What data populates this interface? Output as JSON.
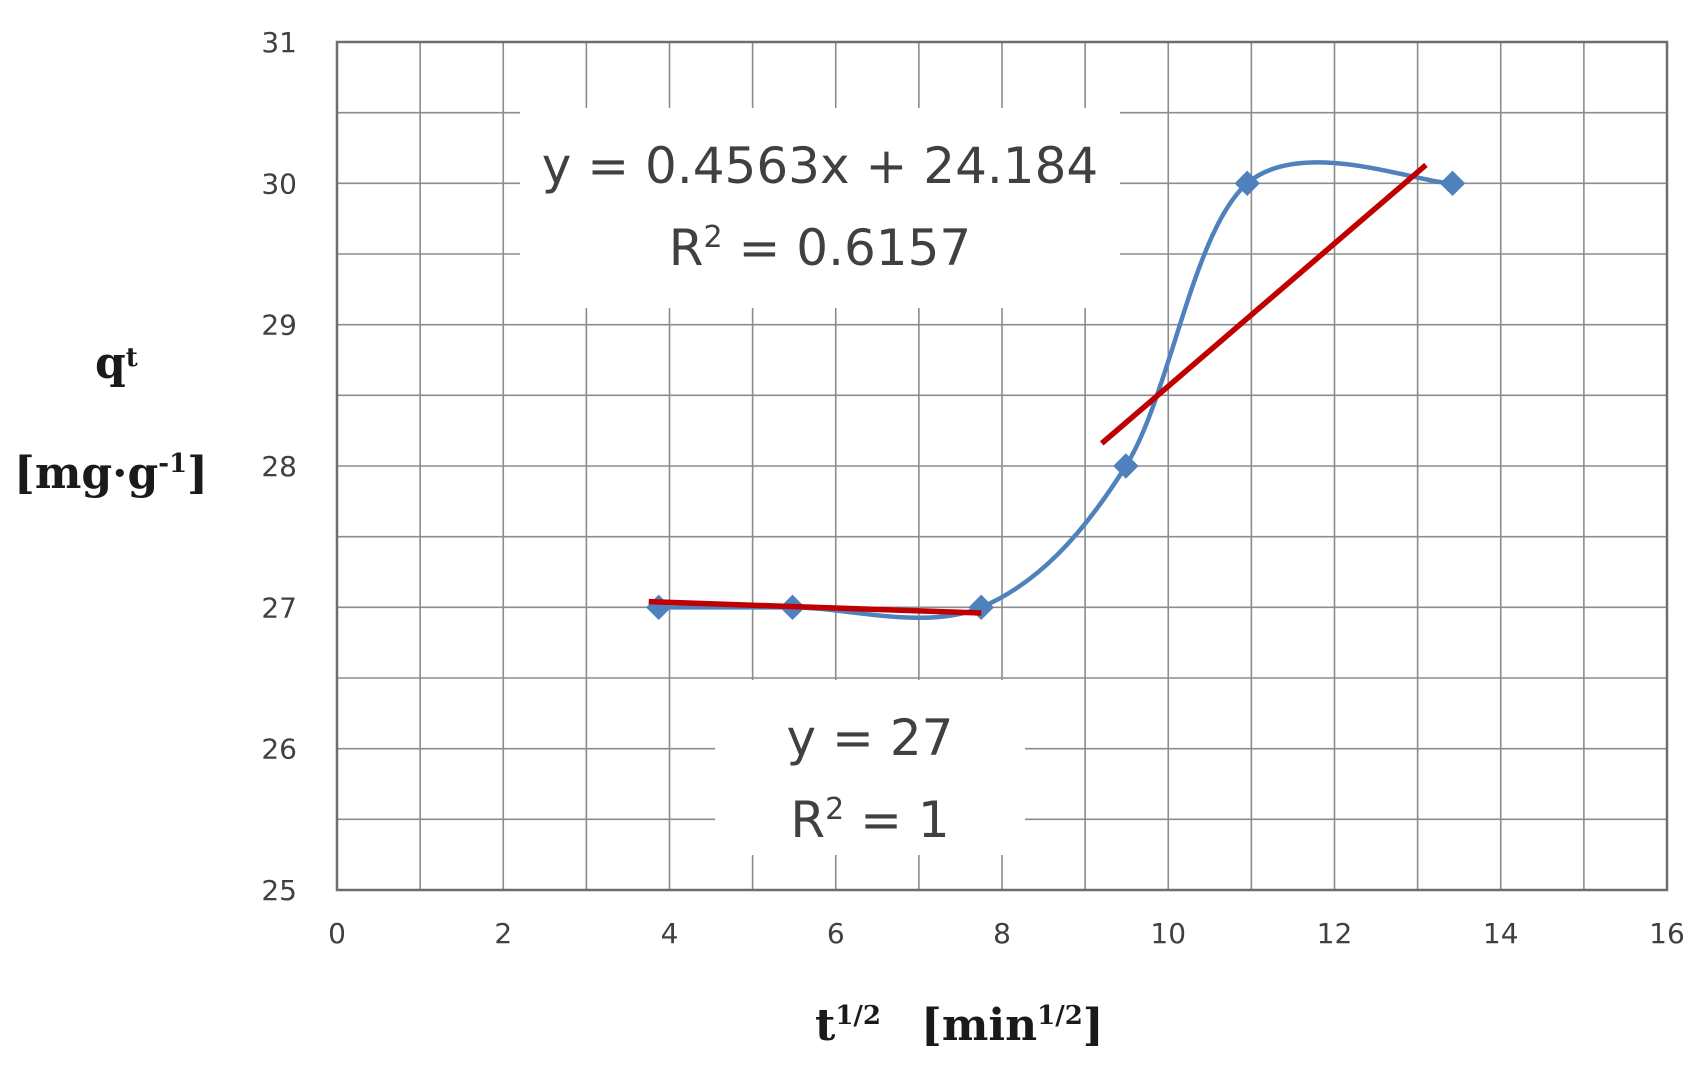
{
  "chart_data": {
    "type": "scatter",
    "xlabel": {
      "base": "t",
      "base_sup": "1/2",
      "unit_open": "[min",
      "unit_sup": "1/2",
      "unit_close": "]"
    },
    "ylabel": {
      "line1_base": "q",
      "line1_sub": "t",
      "line2_open": "[mg·g",
      "line2_sup": "-1",
      "line2_close": "]"
    },
    "xlim": [
      0,
      16
    ],
    "ylim": [
      25,
      31
    ],
    "x_ticks": [
      "0",
      "2",
      "4",
      "6",
      "8",
      "10",
      "12",
      "14",
      "16"
    ],
    "y_ticks": [
      "25",
      "26",
      "27",
      "28",
      "29",
      "30",
      "31"
    ],
    "grid": true,
    "x_minor_step": 1,
    "y_minor_step": 0.5,
    "series": [
      {
        "x": [
          3.87,
          5.48,
          7.75,
          9.49,
          10.95,
          13.42
        ],
        "y": [
          27,
          27,
          27,
          28,
          30,
          30
        ],
        "marker": "diamond",
        "line": "smooth",
        "color": "#4f81bd"
      }
    ],
    "trendlines": [
      {
        "x_range": [
          3.75,
          7.75
        ],
        "y_range": [
          27.04,
          26.96
        ],
        "color": "#c00000",
        "equation": "y = 27",
        "r2_base": "R",
        "r2_sup": "2",
        "r2_rest": " = 1"
      },
      {
        "x_range": [
          9.2,
          13.1
        ],
        "y_range": [
          28.16,
          30.13
        ],
        "color": "#c00000",
        "equation": "y = 0.4563x + 24.184",
        "r2_base": "R",
        "r2_sup": "2",
        "r2_rest": " = 0.6157"
      }
    ]
  }
}
